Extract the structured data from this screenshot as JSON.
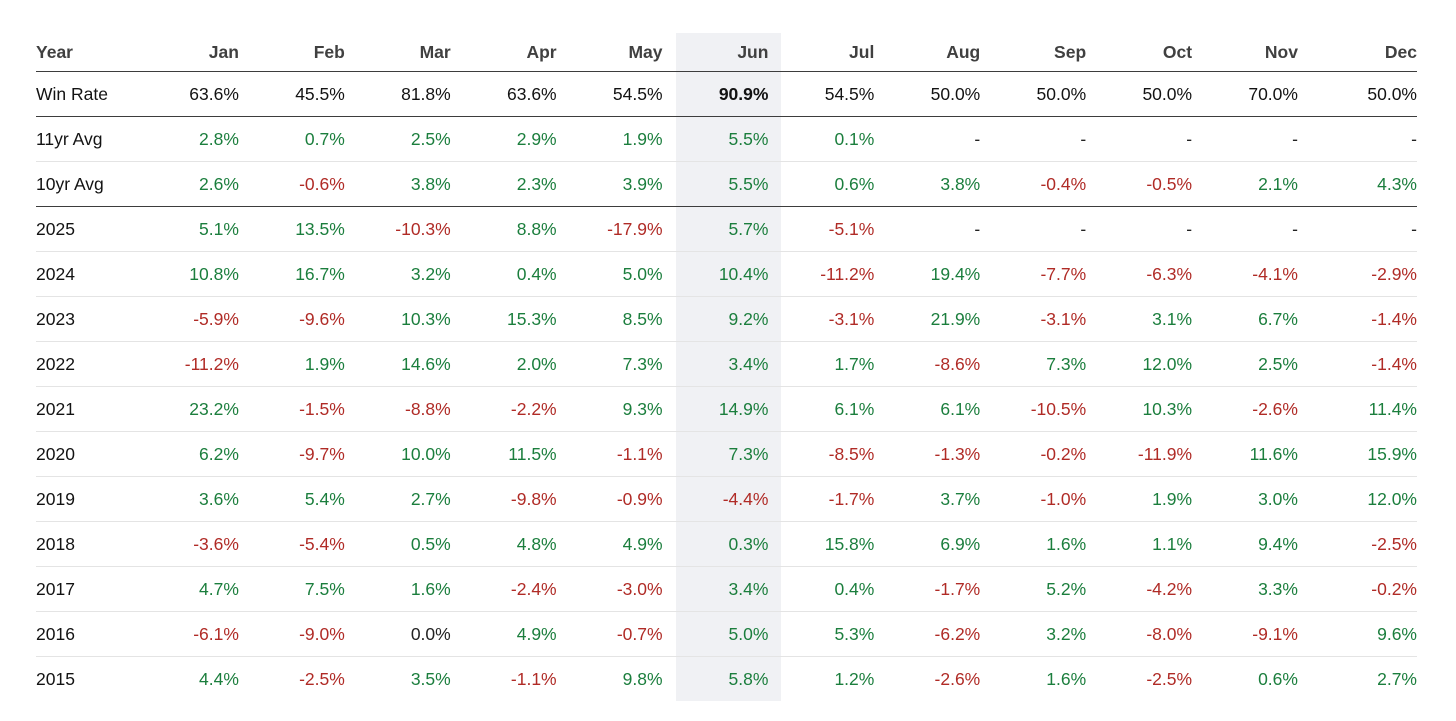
{
  "chart_data": {
    "type": "table",
    "columns": [
      "Year",
      "Jan",
      "Feb",
      "Mar",
      "Apr",
      "May",
      "Jun",
      "Jul",
      "Aug",
      "Sep",
      "Oct",
      "Nov",
      "Dec"
    ],
    "highlighted_column": "Jun",
    "win_rate": {
      "label": "Win Rate",
      "values": [
        "63.6%",
        "45.5%",
        "81.8%",
        "63.6%",
        "54.5%",
        "90.9%",
        "54.5%",
        "50.0%",
        "50.0%",
        "50.0%",
        "70.0%",
        "50.0%"
      ]
    },
    "rows": [
      {
        "label": "11yr Avg",
        "values": [
          "2.8%",
          "0.7%",
          "2.5%",
          "2.9%",
          "1.9%",
          "5.5%",
          "0.1%",
          "-",
          "-",
          "-",
          "-",
          "-"
        ]
      },
      {
        "label": "10yr Avg",
        "values": [
          "2.6%",
          "-0.6%",
          "3.8%",
          "2.3%",
          "3.9%",
          "5.5%",
          "0.6%",
          "3.8%",
          "-0.4%",
          "-0.5%",
          "2.1%",
          "4.3%"
        ]
      },
      {
        "label": "2025",
        "values": [
          "5.1%",
          "13.5%",
          "-10.3%",
          "8.8%",
          "-17.9%",
          "5.7%",
          "-5.1%",
          "-",
          "-",
          "-",
          "-",
          "-"
        ]
      },
      {
        "label": "2024",
        "values": [
          "10.8%",
          "16.7%",
          "3.2%",
          "0.4%",
          "5.0%",
          "10.4%",
          "-11.2%",
          "19.4%",
          "-7.7%",
          "-6.3%",
          "-4.1%",
          "-2.9%"
        ]
      },
      {
        "label": "2023",
        "values": [
          "-5.9%",
          "-9.6%",
          "10.3%",
          "15.3%",
          "8.5%",
          "9.2%",
          "-3.1%",
          "21.9%",
          "-3.1%",
          "3.1%",
          "6.7%",
          "-1.4%"
        ]
      },
      {
        "label": "2022",
        "values": [
          "-11.2%",
          "1.9%",
          "14.6%",
          "2.0%",
          "7.3%",
          "3.4%",
          "1.7%",
          "-8.6%",
          "7.3%",
          "12.0%",
          "2.5%",
          "-1.4%"
        ]
      },
      {
        "label": "2021",
        "values": [
          "23.2%",
          "-1.5%",
          "-8.8%",
          "-2.2%",
          "9.3%",
          "14.9%",
          "6.1%",
          "6.1%",
          "-10.5%",
          "10.3%",
          "-2.6%",
          "11.4%"
        ]
      },
      {
        "label": "2020",
        "values": [
          "6.2%",
          "-9.7%",
          "10.0%",
          "11.5%",
          "-1.1%",
          "7.3%",
          "-8.5%",
          "-1.3%",
          "-0.2%",
          "-11.9%",
          "11.6%",
          "15.9%"
        ]
      },
      {
        "label": "2019",
        "values": [
          "3.6%",
          "5.4%",
          "2.7%",
          "-9.8%",
          "-0.9%",
          "-4.4%",
          "-1.7%",
          "3.7%",
          "-1.0%",
          "1.9%",
          "3.0%",
          "12.0%"
        ]
      },
      {
        "label": "2018",
        "values": [
          "-3.6%",
          "-5.4%",
          "0.5%",
          "4.8%",
          "4.9%",
          "0.3%",
          "15.8%",
          "6.9%",
          "1.6%",
          "1.1%",
          "9.4%",
          "-2.5%"
        ]
      },
      {
        "label": "2017",
        "values": [
          "4.7%",
          "7.5%",
          "1.6%",
          "-2.4%",
          "-3.0%",
          "3.4%",
          "0.4%",
          "-1.7%",
          "5.2%",
          "-4.2%",
          "3.3%",
          "-0.2%"
        ]
      },
      {
        "label": "2016",
        "values": [
          "-6.1%",
          "-9.0%",
          "0.0%",
          "4.9%",
          "-0.7%",
          "5.0%",
          "5.3%",
          "-6.2%",
          "3.2%",
          "-8.0%",
          "-9.1%",
          "9.6%"
        ]
      },
      {
        "label": "2015",
        "values": [
          "4.4%",
          "-2.5%",
          "3.5%",
          "-1.1%",
          "9.8%",
          "5.8%",
          "1.2%",
          "-2.6%",
          "1.6%",
          "-2.5%",
          "0.6%",
          "2.7%"
        ]
      }
    ]
  },
  "colors": {
    "positive": "#1b7e3d",
    "negative": "#b02b26",
    "neutral": "#222222",
    "highlight_column_bg": "#f0f1f4",
    "header_text": "#404040",
    "dark_border": "#3d3d3d",
    "light_border": "#e4e4e4"
  }
}
